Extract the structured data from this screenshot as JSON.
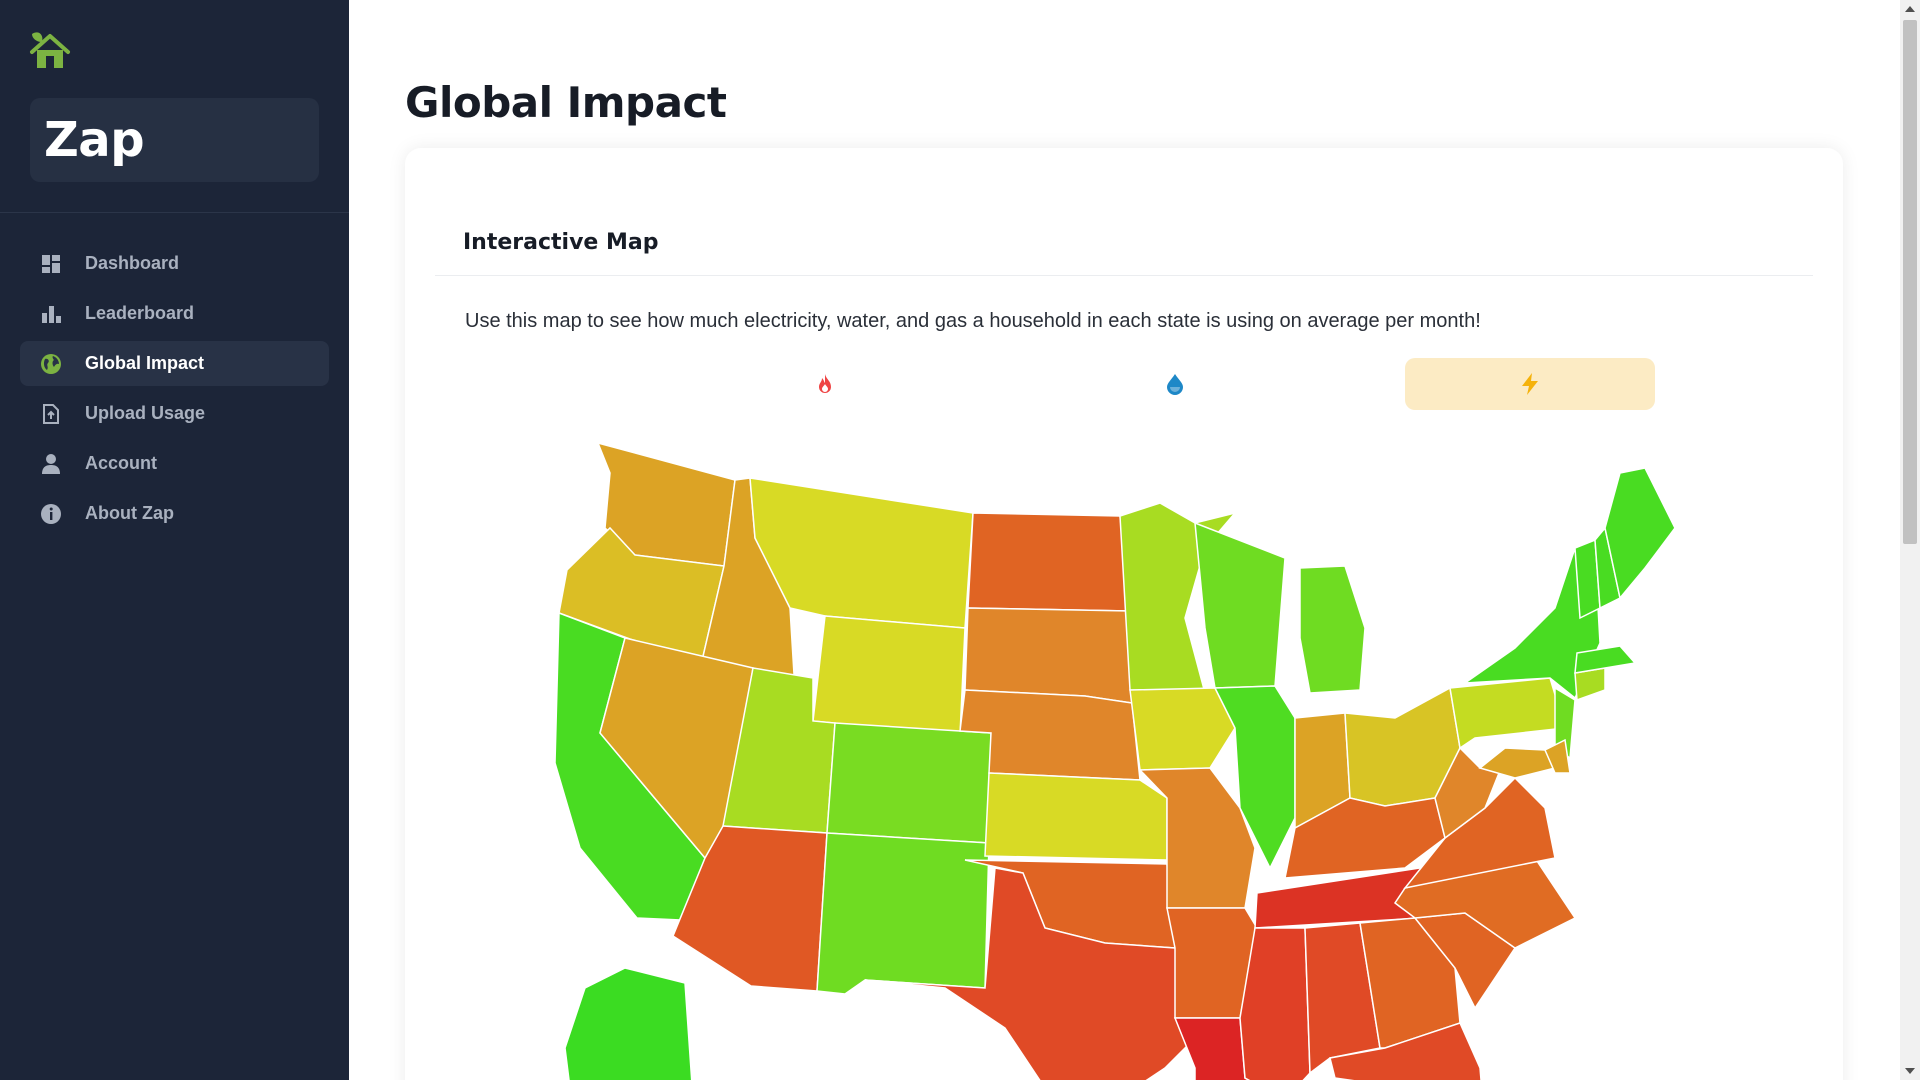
{
  "app": {
    "brand_name": "Zap",
    "logo_icon": "house-leaf-icon"
  },
  "sidebar": {
    "items": [
      {
        "label": "Dashboard",
        "icon": "dashboard-icon",
        "active": false
      },
      {
        "label": "Leaderboard",
        "icon": "bar-chart-icon",
        "active": false
      },
      {
        "label": "Global Impact",
        "icon": "globe-icon",
        "active": true
      },
      {
        "label": "Upload Usage",
        "icon": "file-upload-icon",
        "active": false
      },
      {
        "label": "Account",
        "icon": "person-icon",
        "active": false
      },
      {
        "label": "About Zap",
        "icon": "info-icon",
        "active": false
      }
    ]
  },
  "page": {
    "title": "Global Impact"
  },
  "map_card": {
    "title": "Interactive Map",
    "description": "Use this map to see how much electricity, water, and gas a household in each state is using on average per month!",
    "toggles": [
      {
        "icon": "fire-icon",
        "color": "#ef4444",
        "active": false
      },
      {
        "icon": "water-drop-icon",
        "color": "#1e88c7",
        "active": false
      },
      {
        "icon": "lightning-icon",
        "color": "#f5b20b",
        "active": true
      }
    ],
    "selected_metric_icon": "lightning-icon"
  },
  "colors": {
    "sidebar_bg": "#1c2538",
    "accent_green": "#7cb342",
    "active_toggle_bg": "#fcebc4"
  }
}
